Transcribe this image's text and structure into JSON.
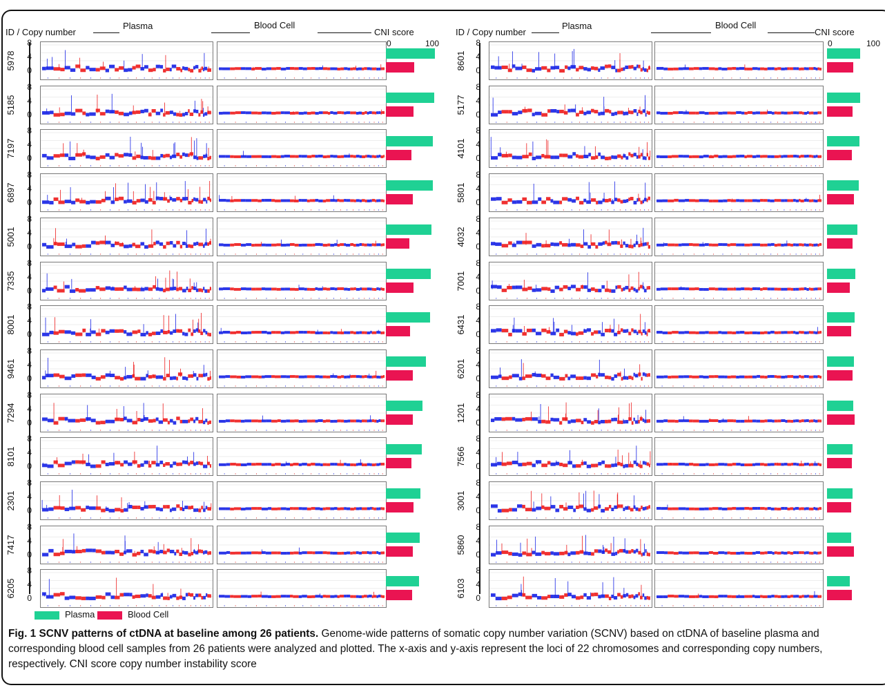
{
  "colors": {
    "plasma": "#1fd194",
    "blood_cell": "#ea1452",
    "segment_blue": "#1521e6",
    "segment_red": "#ee1b1b",
    "frame": "#111111"
  },
  "headers": {
    "id_copy": "ID / Copy number",
    "plasma": "Plasma",
    "blood_cell": "Blood Cell",
    "cni": "CNI score",
    "cni_axis_min": "0",
    "cni_axis_max": "100"
  },
  "y_ticks": [
    "8",
    "4",
    "0"
  ],
  "legend": {
    "plasma": "Plasma",
    "blood_cell": "Blood Cell"
  },
  "caption": {
    "bold": "Fig. 1 SCNV patterns of ctDNA at baseline among 26 patients.",
    "text": " Genome-wide patterns of somatic copy number variation (SCNV) based on ctDNA of baseline plasma and corresponding blood cell samples from 26 patients were analyzed and plotted. The x-axis and y-axis represent the loci of 22 chromosomes and corresponding copy numbers, respectively. CNI score copy number instability score"
  },
  "chart_data": {
    "type": "bar",
    "title": "",
    "xlabel": "CNI score",
    "xlim": [
      0,
      100
    ],
    "orientation": "horizontal",
    "series_names": [
      "Plasma",
      "Blood Cell"
    ],
    "groups": [
      {
        "ids": [
          "5978",
          "5185",
          "7197",
          "6897",
          "5001",
          "7335",
          "8001",
          "9461",
          "7294",
          "8101",
          "2301",
          "7417",
          "6205"
        ],
        "plasma": [
          98,
          97,
          95,
          94,
          91,
          90,
          89,
          80,
          74,
          72,
          70,
          68,
          67
        ],
        "blood_cell": [
          57,
          55,
          51,
          54,
          47,
          55,
          49,
          54,
          54,
          51,
          56,
          54,
          53
        ]
      },
      {
        "ids": [
          "8601",
          "5177",
          "4101",
          "5801",
          "4032",
          "7001",
          "6431",
          "6201",
          "1201",
          "7566",
          "3001",
          "5860",
          "6103"
        ],
        "plasma": [
          67,
          67,
          65,
          64,
          61,
          57,
          55,
          54,
          53,
          52,
          51,
          49,
          46
        ],
        "blood_cell": [
          53,
          51,
          50,
          54,
          52,
          46,
          49,
          51,
          55,
          50,
          48,
          54,
          50
        ]
      }
    ],
    "copy_number_ylim": [
      0,
      8
    ],
    "copy_number_baseline": 2,
    "chromosomes": 22
  }
}
